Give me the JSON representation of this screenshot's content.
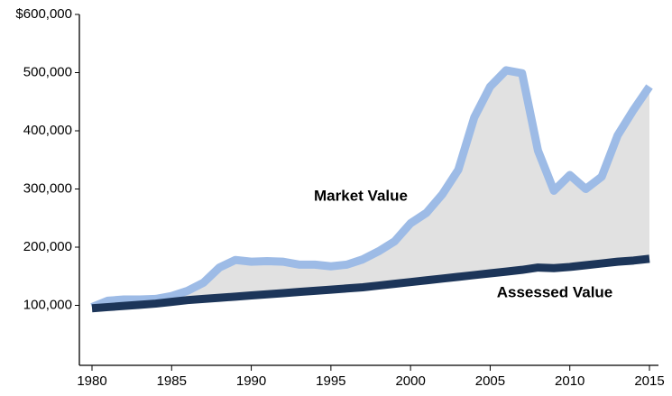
{
  "chart_data": {
    "type": "line",
    "x": [
      1980,
      1981,
      1982,
      1983,
      1984,
      1985,
      1986,
      1987,
      1988,
      1989,
      1990,
      1991,
      1992,
      1993,
      1994,
      1995,
      1996,
      1997,
      1998,
      1999,
      2000,
      2001,
      2002,
      2003,
      2004,
      2005,
      2006,
      2007,
      2008,
      2009,
      2010,
      2011,
      2012,
      2013,
      2014,
      2015
    ],
    "series": [
      {
        "name": "Market Value",
        "color": "#9dbbe6",
        "values": [
          97000,
          108000,
          110000,
          110000,
          111000,
          116000,
          125000,
          139000,
          165000,
          178000,
          175000,
          176000,
          175000,
          170000,
          170000,
          167000,
          170000,
          179000,
          193000,
          210000,
          241000,
          259000,
          291000,
          333000,
          423000,
          476000,
          504000,
          499000,
          366000,
          297000,
          324000,
          300000,
          321000,
          392000,
          436000,
          476000
        ]
      },
      {
        "name": "Assessed Value",
        "color": "#1c3559",
        "values": [
          95000,
          97000,
          99000,
          101000,
          103000,
          106000,
          109000,
          111000,
          113000,
          115000,
          117000,
          119000,
          121000,
          123000,
          125000,
          127000,
          129000,
          131000,
          134000,
          137000,
          140000,
          143000,
          146000,
          149000,
          152000,
          155000,
          158000,
          161000,
          165000,
          164000,
          166000,
          169000,
          172000,
          175000,
          177000,
          180000
        ]
      }
    ],
    "xlim": [
      1980,
      2015
    ],
    "xticks": [
      1980,
      1985,
      1990,
      1995,
      2000,
      2005,
      2010,
      2015
    ],
    "ylim": [
      0,
      600000
    ],
    "yticks": [
      {
        "value": 100000,
        "label": "100,000"
      },
      {
        "value": 200000,
        "label": "200,000"
      },
      {
        "value": 300000,
        "label": "300,000"
      },
      {
        "value": 400000,
        "label": "400,000"
      },
      {
        "value": 500000,
        "label": "500,000"
      },
      {
        "value": 600000,
        "label": "$600,000"
      }
    ],
    "fill_between_color": "#e1e1e1"
  }
}
